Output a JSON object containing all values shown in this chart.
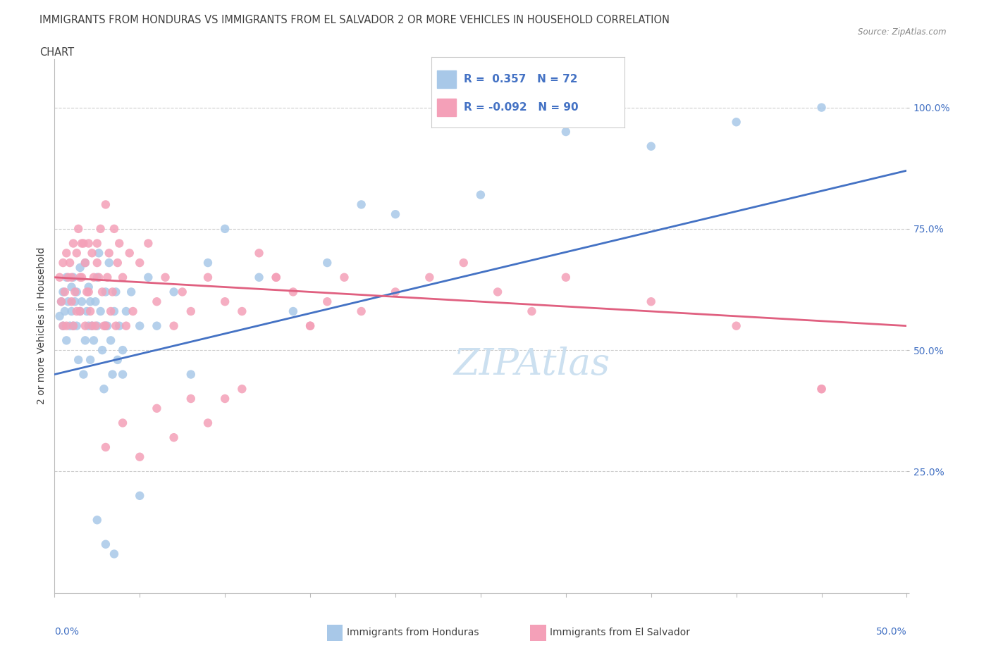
{
  "title_line1": "IMMIGRANTS FROM HONDURAS VS IMMIGRANTS FROM EL SALVADOR 2 OR MORE VEHICLES IN HOUSEHOLD CORRELATION",
  "title_line2": "CHART",
  "source": "Source: ZipAtlas.com",
  "ylabel": "2 or more Vehicles in Household",
  "xlim": [
    0,
    50
  ],
  "ylim": [
    0,
    110
  ],
  "honduras_color": "#a8c8e8",
  "salvador_color": "#f4a0b8",
  "honduras_line_color": "#4472c4",
  "salvador_line_color": "#e06080",
  "watermark_color": "#cce0f0",
  "grid_color": "#cccccc",
  "background_color": "#ffffff",
  "title_color": "#404040",
  "text_color_blue": "#4472c4",
  "legend_label_honduras": "Immigrants from Honduras",
  "legend_label_salvador": "Immigrants from El Salvador",
  "R_honduras": 0.357,
  "N_honduras": 72,
  "R_salvador": -0.092,
  "N_salvador": 90,
  "honduras_trend_x0": 0,
  "honduras_trend_y0": 45,
  "honduras_trend_x1": 50,
  "honduras_trend_y1": 87,
  "salvador_trend_x0": 0,
  "salvador_trend_y0": 65,
  "salvador_trend_x1": 50,
  "salvador_trend_y1": 55,
  "honduras_x": [
    0.3,
    0.4,
    0.5,
    0.5,
    0.6,
    0.7,
    0.7,
    0.8,
    0.9,
    1.0,
    1.0,
    1.1,
    1.1,
    1.2,
    1.3,
    1.3,
    1.4,
    1.5,
    1.5,
    1.6,
    1.7,
    1.8,
    1.8,
    1.9,
    2.0,
    2.0,
    2.1,
    2.1,
    2.2,
    2.3,
    2.4,
    2.5,
    2.5,
    2.6,
    2.7,
    2.8,
    2.9,
    3.0,
    3.0,
    3.1,
    3.2,
    3.3,
    3.4,
    3.5,
    3.6,
    3.7,
    3.8,
    4.0,
    4.2,
    4.5,
    5.0,
    5.5,
    6.0,
    7.0,
    8.0,
    9.0,
    10.0,
    12.0,
    14.0,
    16.0,
    18.0,
    20.0,
    25.0,
    30.0,
    35.0,
    40.0,
    45.0,
    2.5,
    3.0,
    3.5,
    4.0,
    5.0
  ],
  "honduras_y": [
    57,
    60,
    55,
    62,
    58,
    52,
    65,
    60,
    55,
    63,
    58,
    65,
    55,
    60,
    55,
    62,
    48,
    67,
    58,
    60,
    45,
    52,
    68,
    58,
    63,
    55,
    48,
    60,
    55,
    52,
    60,
    65,
    55,
    70,
    58,
    50,
    42,
    62,
    55,
    55,
    68,
    52,
    45,
    58,
    62,
    48,
    55,
    50,
    58,
    62,
    55,
    65,
    55,
    62,
    45,
    68,
    75,
    65,
    58,
    68,
    80,
    78,
    82,
    95,
    92,
    97,
    100,
    15,
    10,
    8,
    45,
    20
  ],
  "salvador_x": [
    0.3,
    0.4,
    0.5,
    0.5,
    0.6,
    0.7,
    0.7,
    0.8,
    0.9,
    1.0,
    1.0,
    1.1,
    1.1,
    1.2,
    1.3,
    1.3,
    1.4,
    1.5,
    1.5,
    1.6,
    1.6,
    1.7,
    1.8,
    1.8,
    1.9,
    2.0,
    2.0,
    2.1,
    2.2,
    2.2,
    2.3,
    2.4,
    2.5,
    2.5,
    2.6,
    2.7,
    2.8,
    2.9,
    3.0,
    3.0,
    3.1,
    3.2,
    3.3,
    3.4,
    3.5,
    3.6,
    3.7,
    3.8,
    4.0,
    4.2,
    4.4,
    4.6,
    5.0,
    5.5,
    6.0,
    6.5,
    7.0,
    7.5,
    8.0,
    9.0,
    10.0,
    11.0,
    12.0,
    13.0,
    14.0,
    15.0,
    16.0,
    17.0,
    18.0,
    20.0,
    22.0,
    24.0,
    26.0,
    28.0,
    30.0,
    35.0,
    40.0,
    45.0,
    3.0,
    5.0,
    7.0,
    4.0,
    6.0,
    8.0,
    9.0,
    10.0,
    11.0,
    13.0,
    15.0,
    45.0
  ],
  "salvador_y": [
    65,
    60,
    68,
    55,
    62,
    70,
    55,
    65,
    68,
    60,
    65,
    72,
    55,
    62,
    70,
    58,
    75,
    58,
    65,
    72,
    65,
    72,
    68,
    55,
    62,
    62,
    72,
    58,
    70,
    55,
    65,
    55,
    72,
    68,
    65,
    75,
    62,
    55,
    80,
    55,
    65,
    70,
    58,
    62,
    75,
    55,
    68,
    72,
    65,
    55,
    70,
    58,
    68,
    72,
    60,
    65,
    55,
    62,
    58,
    65,
    60,
    58,
    70,
    65,
    62,
    55,
    60,
    65,
    58,
    62,
    65,
    68,
    62,
    58,
    65,
    60,
    55,
    42,
    30,
    28,
    32,
    35,
    38,
    40,
    35,
    40,
    42,
    65,
    55,
    42
  ]
}
